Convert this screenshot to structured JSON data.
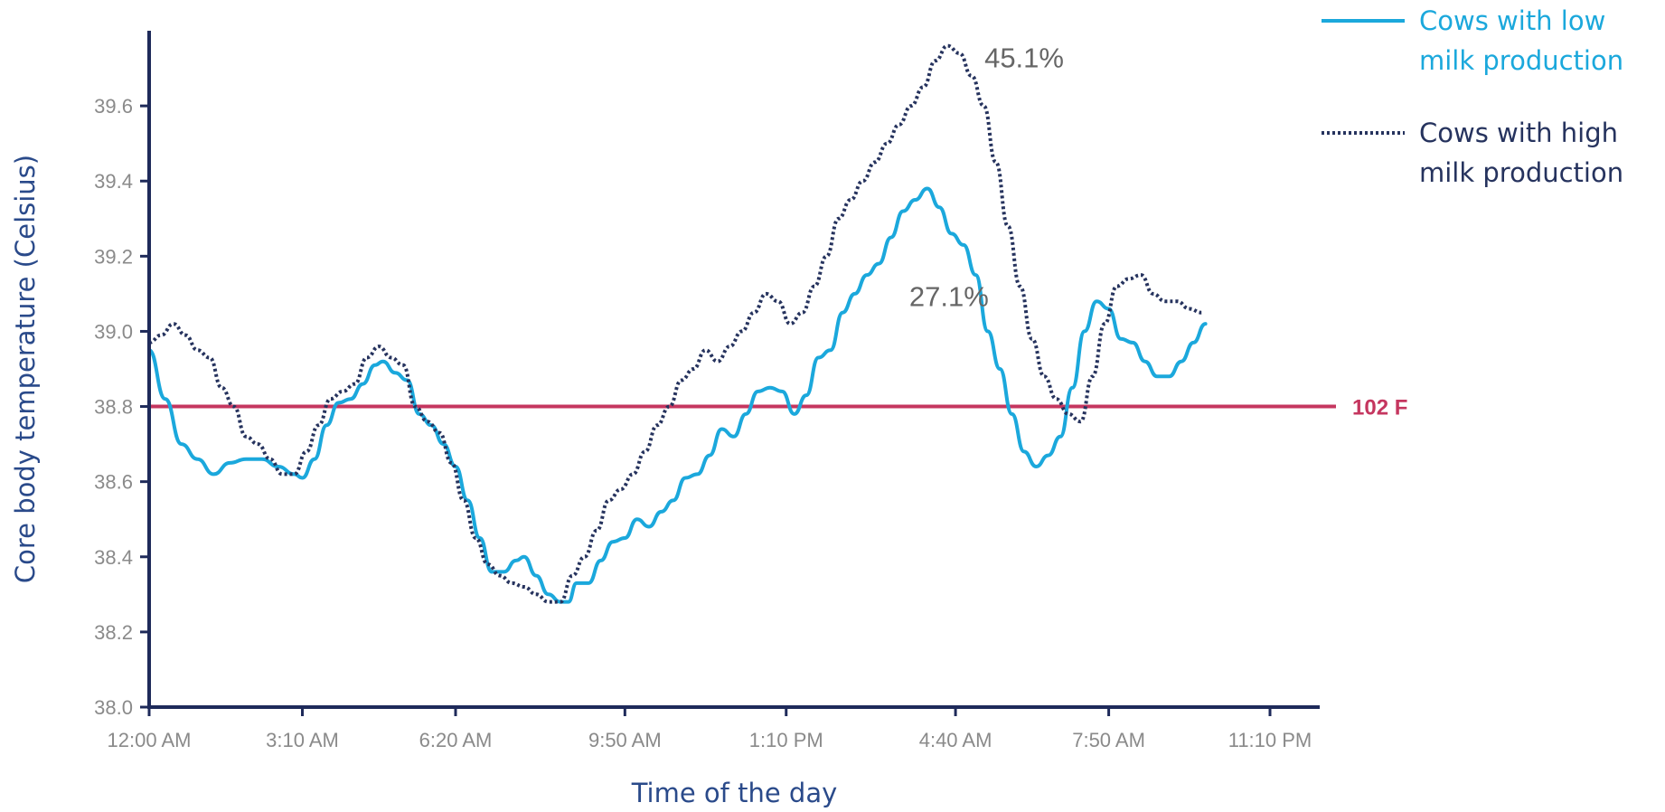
{
  "chart_data": {
    "type": "line",
    "xlabel": "Time of the day",
    "ylabel": "Core body temperature (Celsius)",
    "xlim": [
      0,
      1390
    ],
    "ylim": [
      38.0,
      39.8
    ],
    "x_ticks": [
      {
        "x": 0,
        "label": "12:00 AM"
      },
      {
        "x": 190,
        "label": "3:10 AM"
      },
      {
        "x": 380,
        "label": "6:20 AM"
      },
      {
        "x": 590,
        "label": "9:50 AM"
      },
      {
        "x": 790,
        "label": "1:10 PM"
      },
      {
        "x": 1000,
        "label": "4:40 AM"
      },
      {
        "x": 1190,
        "label": "7:50 AM"
      },
      {
        "x": 1390,
        "label": "11:10 PM"
      }
    ],
    "y_ticks": [
      38.0,
      38.2,
      38.4,
      38.6,
      38.8,
      39.0,
      39.2,
      39.4,
      39.6
    ],
    "y_tick_labels": [
      "38.0",
      "38.2",
      "38.4",
      "38.6",
      "38.8",
      "39.0",
      "39.2",
      "39.4",
      "39.6"
    ],
    "reference_line": {
      "y": 38.8,
      "label": "102 F",
      "color": "#c5365f"
    },
    "legend_position": "top-right",
    "series": [
      {
        "name": "Cows with low milk production",
        "legend_lines": [
          "Cows with low",
          "milk production"
        ],
        "color": "#1ba8dc",
        "style": "solid",
        "points": [
          [
            0,
            38.95
          ],
          [
            20,
            38.82
          ],
          [
            40,
            38.7
          ],
          [
            60,
            38.66
          ],
          [
            80,
            38.62
          ],
          [
            100,
            38.65
          ],
          [
            120,
            38.66
          ],
          [
            140,
            38.66
          ],
          [
            160,
            38.64
          ],
          [
            180,
            38.62
          ],
          [
            190,
            38.61
          ],
          [
            205,
            38.66
          ],
          [
            220,
            38.75
          ],
          [
            235,
            38.81
          ],
          [
            250,
            38.82
          ],
          [
            265,
            38.86
          ],
          [
            280,
            38.91
          ],
          [
            290,
            38.92
          ],
          [
            305,
            38.89
          ],
          [
            320,
            38.87
          ],
          [
            335,
            38.78
          ],
          [
            350,
            38.75
          ],
          [
            365,
            38.7
          ],
          [
            380,
            38.64
          ],
          [
            395,
            38.55
          ],
          [
            410,
            38.45
          ],
          [
            425,
            38.36
          ],
          [
            440,
            38.36
          ],
          [
            455,
            38.39
          ],
          [
            465,
            38.4
          ],
          [
            480,
            38.35
          ],
          [
            495,
            38.3
          ],
          [
            510,
            38.28
          ],
          [
            520,
            38.28
          ],
          [
            530,
            38.33
          ],
          [
            545,
            38.33
          ],
          [
            560,
            38.39
          ],
          [
            575,
            38.44
          ],
          [
            590,
            38.45
          ],
          [
            605,
            38.5
          ],
          [
            620,
            38.48
          ],
          [
            635,
            38.52
          ],
          [
            650,
            38.55
          ],
          [
            665,
            38.61
          ],
          [
            680,
            38.62
          ],
          [
            695,
            38.67
          ],
          [
            710,
            38.74
          ],
          [
            725,
            38.72
          ],
          [
            740,
            38.78
          ],
          [
            755,
            38.84
          ],
          [
            770,
            38.85
          ],
          [
            785,
            38.84
          ],
          [
            800,
            38.78
          ],
          [
            815,
            38.83
          ],
          [
            830,
            38.93
          ],
          [
            845,
            38.95
          ],
          [
            860,
            39.05
          ],
          [
            875,
            39.1
          ],
          [
            890,
            39.15
          ],
          [
            905,
            39.18
          ],
          [
            920,
            39.25
          ],
          [
            935,
            39.32
          ],
          [
            950,
            39.35
          ],
          [
            965,
            39.38
          ],
          [
            980,
            39.33
          ],
          [
            995,
            39.26
          ],
          [
            1010,
            39.23
          ],
          [
            1025,
            39.15
          ],
          [
            1040,
            39.0
          ],
          [
            1055,
            38.9
          ],
          [
            1070,
            38.78
          ],
          [
            1085,
            38.68
          ],
          [
            1100,
            38.64
          ],
          [
            1115,
            38.67
          ],
          [
            1130,
            38.72
          ],
          [
            1145,
            38.85
          ],
          [
            1160,
            39.0
          ],
          [
            1175,
            39.08
          ],
          [
            1190,
            39.06
          ],
          [
            1205,
            38.98
          ],
          [
            1220,
            38.97
          ],
          [
            1235,
            38.92
          ],
          [
            1250,
            38.88
          ],
          [
            1265,
            38.88
          ],
          [
            1280,
            38.92
          ],
          [
            1295,
            38.97
          ],
          [
            1310,
            39.02
          ]
        ]
      },
      {
        "name": "Cows with high milk production",
        "legend_lines": [
          "Cows with high",
          "milk production"
        ],
        "color": "#26335e",
        "style": "dotted",
        "points": [
          [
            0,
            38.97
          ],
          [
            15,
            38.99
          ],
          [
            30,
            39.02
          ],
          [
            45,
            38.99
          ],
          [
            60,
            38.95
          ],
          [
            75,
            38.93
          ],
          [
            90,
            38.85
          ],
          [
            105,
            38.8
          ],
          [
            120,
            38.72
          ],
          [
            135,
            38.7
          ],
          [
            150,
            38.66
          ],
          [
            165,
            38.62
          ],
          [
            180,
            38.62
          ],
          [
            195,
            38.68
          ],
          [
            210,
            38.75
          ],
          [
            225,
            38.82
          ],
          [
            240,
            38.84
          ],
          [
            255,
            38.86
          ],
          [
            270,
            38.93
          ],
          [
            285,
            38.96
          ],
          [
            300,
            38.93
          ],
          [
            315,
            38.91
          ],
          [
            330,
            38.8
          ],
          [
            345,
            38.76
          ],
          [
            360,
            38.73
          ],
          [
            375,
            38.65
          ],
          [
            390,
            38.55
          ],
          [
            405,
            38.45
          ],
          [
            420,
            38.38
          ],
          [
            435,
            38.35
          ],
          [
            450,
            38.33
          ],
          [
            465,
            38.32
          ],
          [
            480,
            38.3
          ],
          [
            495,
            38.28
          ],
          [
            510,
            38.28
          ],
          [
            525,
            38.35
          ],
          [
            540,
            38.4
          ],
          [
            555,
            38.47
          ],
          [
            570,
            38.55
          ],
          [
            585,
            38.58
          ],
          [
            600,
            38.62
          ],
          [
            615,
            38.68
          ],
          [
            630,
            38.75
          ],
          [
            645,
            38.8
          ],
          [
            660,
            38.87
          ],
          [
            675,
            38.9
          ],
          [
            690,
            38.95
          ],
          [
            705,
            38.92
          ],
          [
            720,
            38.96
          ],
          [
            735,
            39.0
          ],
          [
            750,
            39.05
          ],
          [
            765,
            39.1
          ],
          [
            780,
            39.08
          ],
          [
            795,
            39.02
          ],
          [
            810,
            39.05
          ],
          [
            825,
            39.12
          ],
          [
            840,
            39.2
          ],
          [
            855,
            39.3
          ],
          [
            870,
            39.35
          ],
          [
            885,
            39.4
          ],
          [
            900,
            39.45
          ],
          [
            915,
            39.5
          ],
          [
            930,
            39.55
          ],
          [
            945,
            39.6
          ],
          [
            960,
            39.65
          ],
          [
            975,
            39.72
          ],
          [
            990,
            39.76
          ],
          [
            1005,
            39.74
          ],
          [
            1020,
            39.68
          ],
          [
            1035,
            39.6
          ],
          [
            1050,
            39.45
          ],
          [
            1065,
            39.28
          ],
          [
            1080,
            39.12
          ],
          [
            1095,
            38.98
          ],
          [
            1110,
            38.88
          ],
          [
            1125,
            38.82
          ],
          [
            1140,
            38.78
          ],
          [
            1155,
            38.76
          ],
          [
            1170,
            38.88
          ],
          [
            1185,
            39.02
          ],
          [
            1200,
            39.12
          ],
          [
            1215,
            39.14
          ],
          [
            1230,
            39.15
          ],
          [
            1245,
            39.1
          ],
          [
            1260,
            39.08
          ],
          [
            1275,
            39.08
          ],
          [
            1290,
            39.06
          ],
          [
            1305,
            39.05
          ]
        ]
      }
    ],
    "annotations": [
      {
        "text": "45.1%",
        "series": "Cows with high milk production",
        "x": 1000,
        "y": 39.76
      },
      {
        "text": "27.1%",
        "series": "Cows with low milk production",
        "x": 965,
        "y": 39.38
      }
    ]
  }
}
